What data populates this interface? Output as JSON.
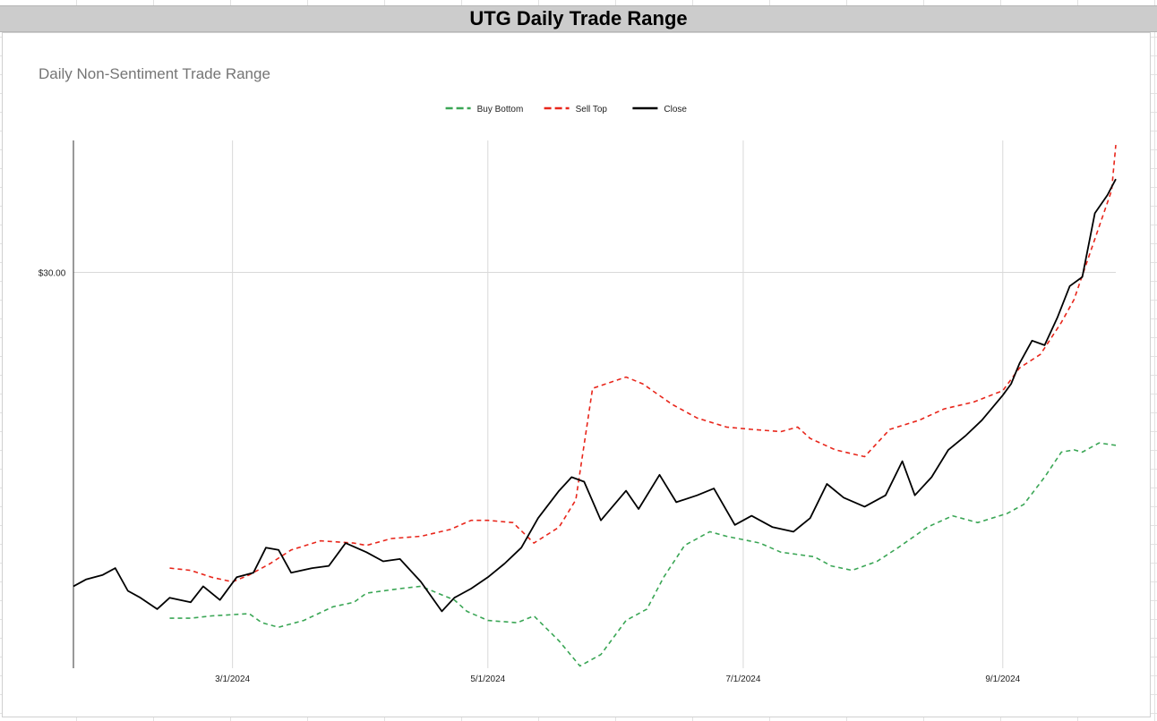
{
  "title": "UTG Daily Trade Range",
  "chart_data": {
    "type": "line",
    "title": "Daily Non-Sentiment Trade Range",
    "xlabel": "",
    "ylabel": "",
    "x_ticks": [
      "3/1/2024",
      "5/1/2024",
      "7/1/2024",
      "9/1/2024"
    ],
    "y_ticks": [
      {
        "value": 30,
        "label": "$30.00"
      }
    ],
    "grid": true,
    "legend_position": "top",
    "xlim": [
      "2024-01-23",
      "2024-09-28"
    ],
    "ylim": [
      21.3,
      32.9
    ],
    "series": [
      {
        "name": "Buy Bottom",
        "color": "#3aa655",
        "dash": "dashed",
        "points": [
          [
            "2024-02-15",
            22.4
          ],
          [
            "2024-02-20",
            22.4
          ],
          [
            "2024-02-25",
            22.45
          ],
          [
            "2024-03-05",
            22.5
          ],
          [
            "2024-03-08",
            22.3
          ],
          [
            "2024-03-12",
            22.2
          ],
          [
            "2024-03-18",
            22.35
          ],
          [
            "2024-03-25",
            22.65
          ],
          [
            "2024-03-30",
            22.75
          ],
          [
            "2024-04-02",
            22.95
          ],
          [
            "2024-04-10",
            23.05
          ],
          [
            "2024-04-15",
            23.1
          ],
          [
            "2024-04-23",
            22.8
          ],
          [
            "2024-04-26",
            22.55
          ],
          [
            "2024-05-01",
            22.35
          ],
          [
            "2024-05-08",
            22.3
          ],
          [
            "2024-05-12",
            22.45
          ],
          [
            "2024-05-18",
            21.9
          ],
          [
            "2024-05-23",
            21.35
          ],
          [
            "2024-05-28",
            21.6
          ],
          [
            "2024-06-03",
            22.35
          ],
          [
            "2024-06-08",
            22.6
          ],
          [
            "2024-06-12",
            23.3
          ],
          [
            "2024-06-17",
            24.0
          ],
          [
            "2024-06-23",
            24.3
          ],
          [
            "2024-06-27",
            24.2
          ],
          [
            "2024-07-05",
            24.05
          ],
          [
            "2024-07-10",
            23.85
          ],
          [
            "2024-07-18",
            23.75
          ],
          [
            "2024-07-22",
            23.55
          ],
          [
            "2024-07-27",
            23.45
          ],
          [
            "2024-08-02",
            23.65
          ],
          [
            "2024-08-07",
            23.95
          ],
          [
            "2024-08-14",
            24.4
          ],
          [
            "2024-08-20",
            24.65
          ],
          [
            "2024-08-26",
            24.5
          ],
          [
            "2024-09-02",
            24.7
          ],
          [
            "2024-09-06",
            24.9
          ],
          [
            "2024-09-11",
            25.5
          ],
          [
            "2024-09-15",
            26.05
          ],
          [
            "2024-09-18",
            26.1
          ],
          [
            "2024-09-20",
            26.05
          ],
          [
            "2024-09-24",
            26.25
          ],
          [
            "2024-09-28",
            26.2
          ]
        ]
      },
      {
        "name": "Sell Top",
        "color": "#e8261b",
        "dash": "dashed",
        "points": [
          [
            "2024-02-15",
            23.5
          ],
          [
            "2024-02-20",
            23.45
          ],
          [
            "2024-02-25",
            23.3
          ],
          [
            "2024-03-01",
            23.2
          ],
          [
            "2024-03-05",
            23.35
          ],
          [
            "2024-03-10",
            23.6
          ],
          [
            "2024-03-15",
            23.9
          ],
          [
            "2024-03-22",
            24.1
          ],
          [
            "2024-03-30",
            24.05
          ],
          [
            "2024-04-02",
            24.0
          ],
          [
            "2024-04-08",
            24.15
          ],
          [
            "2024-04-15",
            24.2
          ],
          [
            "2024-04-22",
            24.35
          ],
          [
            "2024-04-27",
            24.55
          ],
          [
            "2024-05-01",
            24.55
          ],
          [
            "2024-05-07",
            24.5
          ],
          [
            "2024-05-12",
            24.05
          ],
          [
            "2024-05-18",
            24.4
          ],
          [
            "2024-05-22",
            25.0
          ],
          [
            "2024-05-26",
            27.45
          ],
          [
            "2024-06-03",
            27.7
          ],
          [
            "2024-06-07",
            27.55
          ],
          [
            "2024-06-14",
            27.1
          ],
          [
            "2024-06-20",
            26.8
          ],
          [
            "2024-06-27",
            26.6
          ],
          [
            "2024-07-03",
            26.55
          ],
          [
            "2024-07-10",
            26.5
          ],
          [
            "2024-07-14",
            26.6
          ],
          [
            "2024-07-17",
            26.35
          ],
          [
            "2024-07-23",
            26.1
          ],
          [
            "2024-07-30",
            25.95
          ],
          [
            "2024-08-05",
            26.55
          ],
          [
            "2024-08-12",
            26.75
          ],
          [
            "2024-08-18",
            27.0
          ],
          [
            "2024-08-25",
            27.15
          ],
          [
            "2024-09-01",
            27.4
          ],
          [
            "2024-09-05",
            27.9
          ],
          [
            "2024-09-10",
            28.2
          ],
          [
            "2024-09-15",
            28.9
          ],
          [
            "2024-09-18",
            29.4
          ],
          [
            "2024-09-21",
            30.2
          ],
          [
            "2024-09-24",
            31.0
          ],
          [
            "2024-09-27",
            31.8
          ],
          [
            "2024-09-28",
            32.8
          ]
        ]
      },
      {
        "name": "Close",
        "color": "#000000",
        "dash": "solid",
        "points": [
          [
            "2024-01-23",
            23.1
          ],
          [
            "2024-01-26",
            23.25
          ],
          [
            "2024-01-30",
            23.35
          ],
          [
            "2024-02-02",
            23.5
          ],
          [
            "2024-02-05",
            23.0
          ],
          [
            "2024-02-08",
            22.85
          ],
          [
            "2024-02-12",
            22.6
          ],
          [
            "2024-02-15",
            22.85
          ],
          [
            "2024-02-20",
            22.75
          ],
          [
            "2024-02-23",
            23.1
          ],
          [
            "2024-02-27",
            22.8
          ],
          [
            "2024-03-02",
            23.3
          ],
          [
            "2024-03-06",
            23.4
          ],
          [
            "2024-03-09",
            23.95
          ],
          [
            "2024-03-12",
            23.9
          ],
          [
            "2024-03-15",
            23.4
          ],
          [
            "2024-03-20",
            23.5
          ],
          [
            "2024-03-24",
            23.55
          ],
          [
            "2024-03-28",
            24.05
          ],
          [
            "2024-04-02",
            23.85
          ],
          [
            "2024-04-06",
            23.65
          ],
          [
            "2024-04-10",
            23.7
          ],
          [
            "2024-04-15",
            23.2
          ],
          [
            "2024-04-20",
            22.55
          ],
          [
            "2024-04-23",
            22.85
          ],
          [
            "2024-04-27",
            23.05
          ],
          [
            "2024-05-01",
            23.3
          ],
          [
            "2024-05-05",
            23.6
          ],
          [
            "2024-05-09",
            23.95
          ],
          [
            "2024-05-13",
            24.6
          ],
          [
            "2024-05-18",
            25.2
          ],
          [
            "2024-05-21",
            25.5
          ],
          [
            "2024-05-24",
            25.4
          ],
          [
            "2024-05-28",
            24.55
          ],
          [
            "2024-06-03",
            25.2
          ],
          [
            "2024-06-06",
            24.8
          ],
          [
            "2024-06-11",
            25.55
          ],
          [
            "2024-06-15",
            24.95
          ],
          [
            "2024-06-20",
            25.1
          ],
          [
            "2024-06-24",
            25.25
          ],
          [
            "2024-06-29",
            24.45
          ],
          [
            "2024-07-03",
            24.65
          ],
          [
            "2024-07-08",
            24.4
          ],
          [
            "2024-07-13",
            24.3
          ],
          [
            "2024-07-17",
            24.6
          ],
          [
            "2024-07-21",
            25.35
          ],
          [
            "2024-07-25",
            25.05
          ],
          [
            "2024-07-30",
            24.85
          ],
          [
            "2024-08-04",
            25.1
          ],
          [
            "2024-08-08",
            25.85
          ],
          [
            "2024-08-11",
            25.1
          ],
          [
            "2024-08-15",
            25.5
          ],
          [
            "2024-08-19",
            26.1
          ],
          [
            "2024-08-23",
            26.4
          ],
          [
            "2024-08-27",
            26.75
          ],
          [
            "2024-09-01",
            27.3
          ],
          [
            "2024-09-03",
            27.55
          ],
          [
            "2024-09-05",
            28.0
          ],
          [
            "2024-09-08",
            28.5
          ],
          [
            "2024-09-11",
            28.4
          ],
          [
            "2024-09-14",
            29.0
          ],
          [
            "2024-09-17",
            29.7
          ],
          [
            "2024-09-20",
            29.9
          ],
          [
            "2024-09-23",
            31.3
          ],
          [
            "2024-09-26",
            31.7
          ],
          [
            "2024-09-28",
            32.05
          ]
        ]
      }
    ]
  }
}
